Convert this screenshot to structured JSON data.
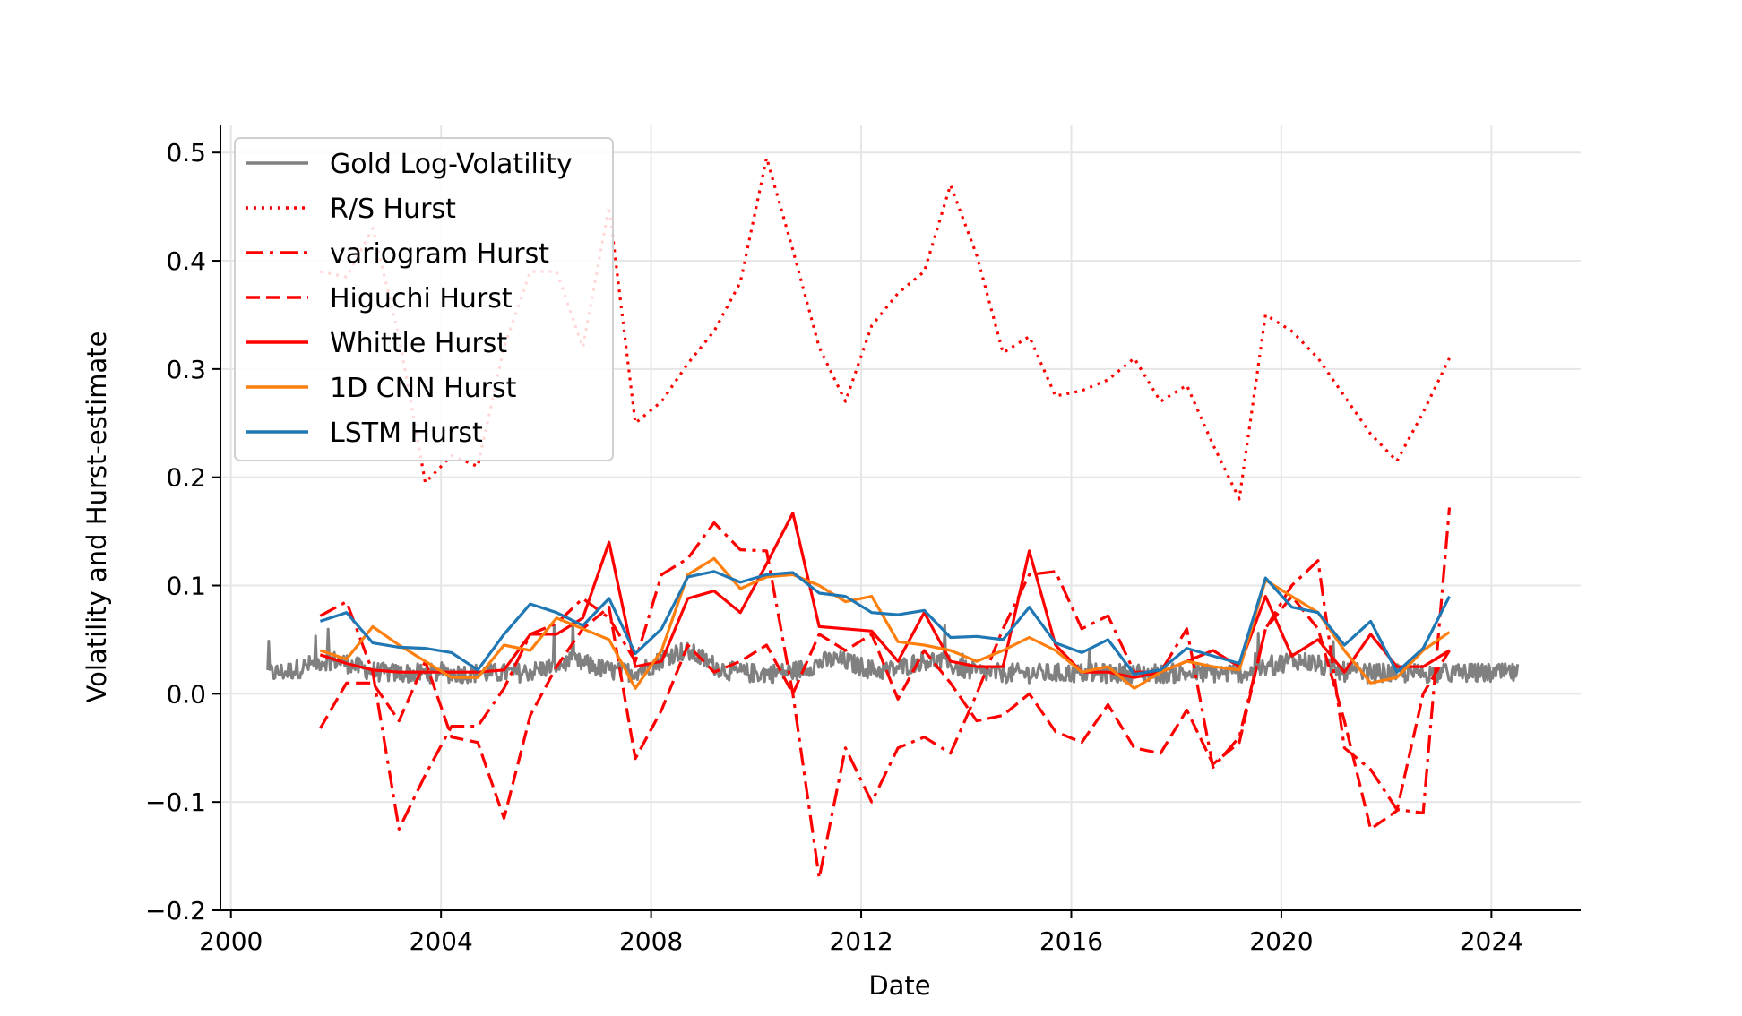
{
  "chart_data": {
    "type": "line",
    "title": "",
    "xlabel": "Date",
    "ylabel": "Volatility and Hurst-estimate",
    "xlim": [
      1999.8,
      2025.7
    ],
    "ylim": [
      -0.2,
      0.525
    ],
    "x_ticks": [
      2000,
      2004,
      2008,
      2012,
      2016,
      2020,
      2024
    ],
    "x_tick_labels": [
      "2000",
      "2004",
      "2008",
      "2012",
      "2016",
      "2020",
      "2024"
    ],
    "y_ticks": [
      -0.2,
      -0.1,
      0.0,
      0.1,
      0.2,
      0.3,
      0.4,
      0.5
    ],
    "y_tick_labels": [
      "−0.2",
      "−0.1",
      "0.0",
      "0.1",
      "0.2",
      "0.3",
      "0.4",
      "0.5"
    ],
    "grid": true,
    "legend_position": "top-left",
    "volatility": {
      "name": "Gold Log-Volatility",
      "color": "#808080",
      "x_start": 2000.7,
      "x_end": 2024.5,
      "baseline": 0.018,
      "note_shape": "noisy daily series"
    },
    "series": [
      {
        "name": "R/S Hurst",
        "color": "#ff0000",
        "style": "dotted",
        "x": [
          2001.7,
          2002.2,
          2002.7,
          2003.2,
          2003.7,
          2004.2,
          2004.7,
          2005.2,
          2005.7,
          2006.2,
          2006.7,
          2007.2,
          2007.7,
          2008.2,
          2008.7,
          2009.2,
          2009.7,
          2010.2,
          2010.7,
          2011.2,
          2011.7,
          2012.2,
          2012.7,
          2013.2,
          2013.7,
          2014.2,
          2014.7,
          2015.2,
          2015.7,
          2016.2,
          2016.7,
          2017.2,
          2017.7,
          2018.2,
          2018.7,
          2019.2,
          2019.7,
          2020.2,
          2020.7,
          2021.2,
          2021.7,
          2022.2,
          2022.7,
          2023.2
        ],
        "y": [
          0.39,
          0.385,
          0.43,
          0.33,
          0.195,
          0.22,
          0.21,
          0.32,
          0.39,
          0.39,
          0.32,
          0.45,
          0.25,
          0.27,
          0.305,
          0.335,
          0.38,
          0.495,
          0.41,
          0.32,
          0.27,
          0.34,
          0.37,
          0.39,
          0.47,
          0.405,
          0.315,
          0.33,
          0.275,
          0.28,
          0.29,
          0.31,
          0.27,
          0.285,
          0.23,
          0.18,
          0.35,
          0.335,
          0.31,
          0.275,
          0.24,
          0.215,
          0.26,
          0.31
        ]
      },
      {
        "name": "variogram Hurst",
        "color": "#ff0000",
        "style": "dashdot",
        "x": [
          2001.7,
          2002.2,
          2002.7,
          2003.2,
          2003.7,
          2004.2,
          2004.7,
          2005.2,
          2005.7,
          2006.2,
          2006.7,
          2007.2,
          2007.7,
          2008.2,
          2008.7,
          2009.2,
          2009.7,
          2010.2,
          2010.7,
          2011.2,
          2011.7,
          2012.2,
          2012.7,
          2013.2,
          2013.7,
          2014.2,
          2014.7,
          2015.2,
          2015.7,
          2016.2,
          2016.7,
          2017.2,
          2017.7,
          2018.2,
          2018.7,
          2019.2,
          2019.7,
          2020.2,
          2020.7,
          2021.2,
          2021.7,
          2022.2,
          2022.7,
          2023.2
        ],
        "y": [
          0.072,
          0.085,
          0.02,
          -0.125,
          -0.075,
          -0.03,
          -0.03,
          0.005,
          0.055,
          0.065,
          0.088,
          0.07,
          0.03,
          0.11,
          0.125,
          0.158,
          0.133,
          0.132,
          0.0,
          -0.17,
          -0.05,
          -0.1,
          -0.05,
          -0.04,
          -0.055,
          0.0,
          0.06,
          0.11,
          0.113,
          0.06,
          0.072,
          0.02,
          0.02,
          0.06,
          -0.068,
          -0.04,
          0.06,
          0.1,
          0.123,
          -0.05,
          -0.07,
          -0.107,
          -0.11,
          0.172
        ]
      },
      {
        "name": "Higuchi Hurst",
        "color": "#ff0000",
        "style": "dashed",
        "x": [
          2001.7,
          2002.2,
          2002.7,
          2003.2,
          2003.7,
          2004.2,
          2004.7,
          2005.2,
          2005.7,
          2006.2,
          2006.7,
          2007.2,
          2007.7,
          2008.2,
          2008.7,
          2009.2,
          2009.7,
          2010.2,
          2010.7,
          2011.2,
          2011.7,
          2012.2,
          2012.7,
          2013.2,
          2013.7,
          2014.2,
          2014.7,
          2015.2,
          2015.7,
          2016.2,
          2016.7,
          2017.2,
          2017.7,
          2018.2,
          2018.7,
          2019.2,
          2019.7,
          2020.2,
          2020.7,
          2021.2,
          2021.7,
          2022.2,
          2022.7,
          2023.2
        ],
        "y": [
          -0.032,
          0.01,
          0.01,
          -0.025,
          0.03,
          -0.04,
          -0.045,
          -0.115,
          -0.02,
          0.025,
          0.06,
          0.08,
          -0.06,
          -0.015,
          0.045,
          0.02,
          0.03,
          0.045,
          0.0,
          0.055,
          0.04,
          0.055,
          -0.005,
          0.04,
          0.01,
          -0.025,
          -0.02,
          0.0,
          -0.035,
          -0.045,
          -0.01,
          -0.05,
          -0.055,
          -0.015,
          -0.065,
          -0.045,
          0.06,
          0.09,
          0.06,
          -0.025,
          -0.125,
          -0.108,
          0.0,
          0.04
        ]
      },
      {
        "name": "Whittle Hurst",
        "color": "#ff0000",
        "style": "solid",
        "x": [
          2001.7,
          2002.2,
          2002.7,
          2003.2,
          2003.7,
          2004.2,
          2004.7,
          2005.2,
          2005.7,
          2006.2,
          2006.7,
          2007.2,
          2007.7,
          2008.2,
          2008.7,
          2009.2,
          2009.7,
          2010.2,
          2010.7,
          2011.2,
          2011.7,
          2012.2,
          2012.7,
          2013.2,
          2013.7,
          2014.2,
          2014.7,
          2015.2,
          2015.7,
          2016.2,
          2016.7,
          2017.2,
          2017.7,
          2018.2,
          2018.7,
          2019.2,
          2019.7,
          2020.2,
          2020.7,
          2021.2,
          2021.7,
          2022.2,
          2022.7,
          2023.2
        ],
        "y": [
          0.036,
          0.028,
          0.022,
          0.02,
          0.02,
          0.02,
          0.02,
          0.022,
          0.055,
          0.055,
          0.07,
          0.14,
          0.025,
          0.03,
          0.088,
          0.095,
          0.075,
          0.12,
          0.167,
          0.062,
          0.06,
          0.058,
          0.03,
          0.075,
          0.03,
          0.025,
          0.025,
          0.132,
          0.045,
          0.02,
          0.02,
          0.015,
          0.02,
          0.03,
          0.04,
          0.025,
          0.09,
          0.035,
          0.05,
          0.02,
          0.055,
          0.025,
          0.025,
          0.04
        ]
      },
      {
        "name": "1D CNN Hurst",
        "color": "#ff7f0e",
        "style": "solid",
        "x": [
          2001.7,
          2002.2,
          2002.7,
          2003.2,
          2003.7,
          2004.2,
          2004.7,
          2005.2,
          2005.7,
          2006.2,
          2006.7,
          2007.2,
          2007.7,
          2008.2,
          2008.7,
          2009.2,
          2009.7,
          2010.2,
          2010.7,
          2011.2,
          2011.7,
          2012.2,
          2012.7,
          2013.2,
          2013.7,
          2014.2,
          2014.7,
          2015.2,
          2015.7,
          2016.2,
          2016.7,
          2017.2,
          2017.7,
          2018.2,
          2018.7,
          2019.2,
          2019.7,
          2020.2,
          2020.7,
          2021.2,
          2021.7,
          2022.2,
          2022.7,
          2023.2
        ],
        "y": [
          0.04,
          0.032,
          0.062,
          0.045,
          0.03,
          0.015,
          0.015,
          0.045,
          0.04,
          0.07,
          0.06,
          0.05,
          0.005,
          0.04,
          0.11,
          0.125,
          0.097,
          0.108,
          0.11,
          0.1,
          0.085,
          0.09,
          0.048,
          0.045,
          0.04,
          0.03,
          0.04,
          0.052,
          0.04,
          0.02,
          0.025,
          0.005,
          0.02,
          0.03,
          0.025,
          0.022,
          0.105,
          0.09,
          0.075,
          0.04,
          0.01,
          0.015,
          0.04,
          0.057
        ]
      },
      {
        "name": "LSTM Hurst",
        "color": "#1f77b4",
        "style": "solid",
        "x": [
          2001.7,
          2002.2,
          2002.7,
          2003.2,
          2003.7,
          2004.2,
          2004.7,
          2005.2,
          2005.7,
          2006.2,
          2006.7,
          2007.2,
          2007.7,
          2008.2,
          2008.7,
          2009.2,
          2009.7,
          2010.2,
          2010.7,
          2011.2,
          2011.7,
          2012.2,
          2012.7,
          2013.2,
          2013.7,
          2014.2,
          2014.7,
          2015.2,
          2015.7,
          2016.2,
          2016.7,
          2017.2,
          2017.7,
          2018.2,
          2018.7,
          2019.2,
          2019.7,
          2020.2,
          2020.7,
          2021.2,
          2021.7,
          2022.2,
          2022.7,
          2023.2
        ],
        "y": [
          0.067,
          0.075,
          0.047,
          0.043,
          0.042,
          0.038,
          0.022,
          0.055,
          0.083,
          0.075,
          0.063,
          0.088,
          0.037,
          0.06,
          0.108,
          0.113,
          0.103,
          0.11,
          0.112,
          0.093,
          0.09,
          0.075,
          0.073,
          0.077,
          0.052,
          0.053,
          0.05,
          0.08,
          0.047,
          0.038,
          0.05,
          0.018,
          0.022,
          0.042,
          0.035,
          0.028,
          0.107,
          0.08,
          0.075,
          0.045,
          0.067,
          0.02,
          0.042,
          0.09
        ]
      }
    ]
  }
}
